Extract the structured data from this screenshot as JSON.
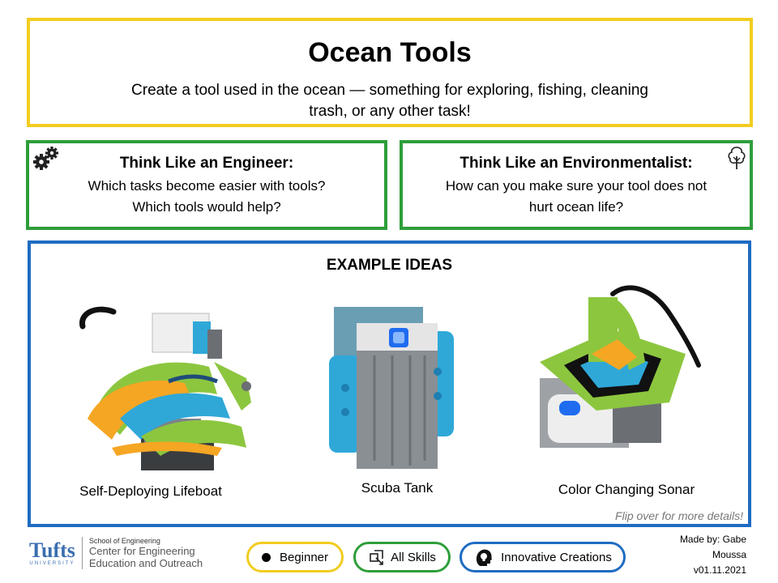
{
  "header": {
    "title": "Ocean Tools",
    "subtitle": "Create a tool used in the ocean — something for exploring, fishing, cleaning trash, or any other task!"
  },
  "engineer": {
    "heading": "Think Like an Engineer:",
    "line1": "Which tasks become easier with tools?",
    "line2": "Which tools would help?",
    "icon": "gears-icon"
  },
  "environmentalist": {
    "heading": "Think Like an Environmentalist:",
    "line1": "How can you make sure your tool does not",
    "line2": "hurt ocean life?",
    "icon": "tree-icon"
  },
  "examples": {
    "heading": "EXAMPLE IDEAS",
    "items": [
      {
        "caption": "Self-Deploying Lifeboat"
      },
      {
        "caption": "Scuba Tank"
      },
      {
        "caption": "Color Changing Sonar"
      }
    ],
    "flip_note": "Flip over for more details!"
  },
  "footer": {
    "logo_word": "Tufts",
    "logo_sub": "UNIVERSITY",
    "school": "School of Engineering",
    "center_line1": "Center for Engineering",
    "center_line2": "Education and Outreach",
    "pills": [
      {
        "label": "Beginner",
        "color": "#f2cc1f"
      },
      {
        "label": "All Skills",
        "color": "#2e9e3a"
      },
      {
        "label": "Innovative Creations",
        "color": "#1f6cc2"
      }
    ],
    "made_by_line1": "Made by: Gabe",
    "made_by_line2": "Moussa",
    "version": "v01.11.2021"
  },
  "colors": {
    "yellow": "#f2cc1f",
    "green": "#2e9e3a",
    "blue": "#1f6cc2",
    "lego_green": "#8cc63f",
    "lego_blue": "#2fa8d8",
    "lego_orange": "#f5a623",
    "lego_gray": "#8a8f94"
  }
}
